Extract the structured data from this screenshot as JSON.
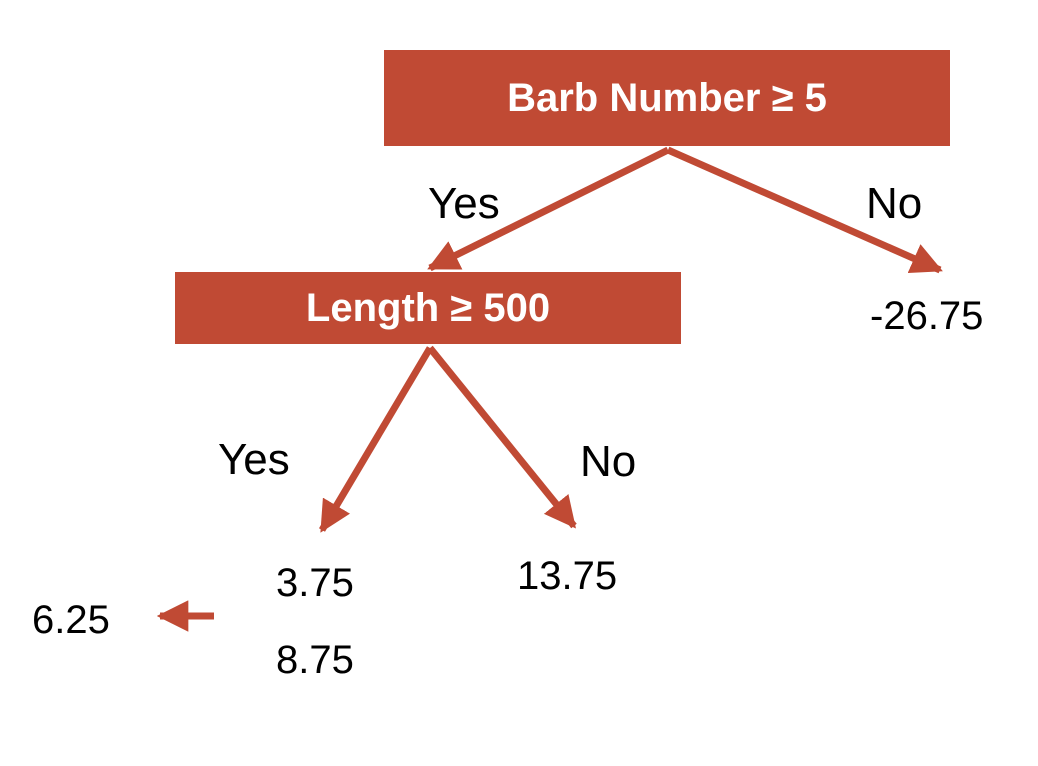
{
  "root": {
    "text": "Barb Number ≥ 5"
  },
  "child": {
    "text": "Length ≥ 500"
  },
  "labels": {
    "root_yes": "Yes",
    "root_no": "No",
    "child_yes": "Yes",
    "child_no": "No"
  },
  "leaves": {
    "root_no_value": "-26.75",
    "yes_value_1": "3.75",
    "yes_value_2": "8.75",
    "no_value": "13.75",
    "average_value": "6.25"
  },
  "colors": {
    "accent": "#c04a34"
  }
}
